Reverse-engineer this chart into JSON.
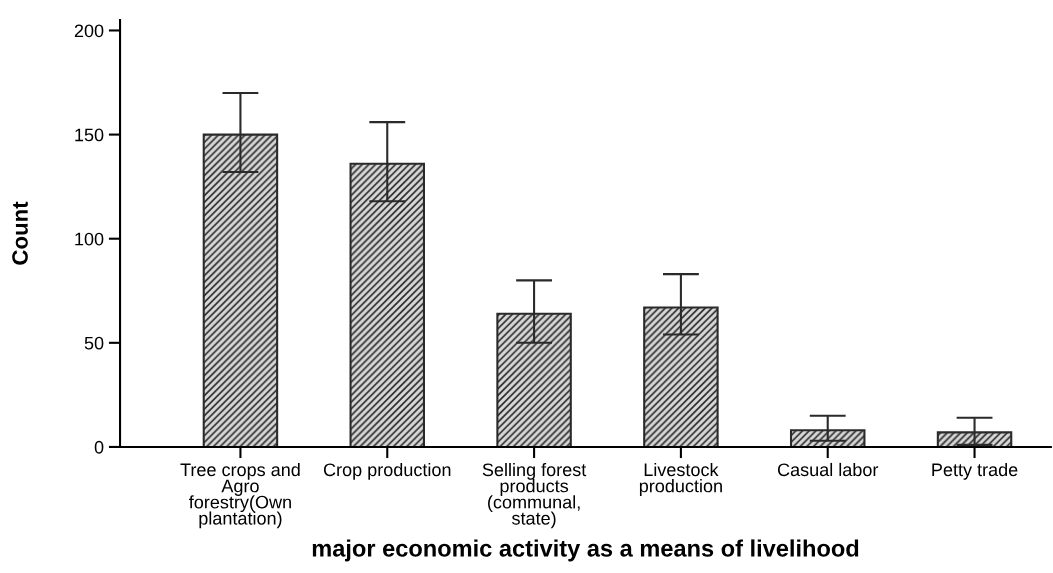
{
  "chart_data": {
    "type": "bar",
    "xlabel": "major economic activity as a means of livelihood",
    "ylabel": "Count",
    "categories": [
      "Tree crops and Agro forestry(Own plantation)",
      "Crop production",
      "Selling forest products (communal, state)",
      "Livestock production",
      "Casual labor",
      "Petty trade"
    ],
    "values": [
      150,
      136,
      64,
      67,
      8,
      7
    ],
    "errors": [
      [
        132,
        170
      ],
      [
        118,
        156
      ],
      [
        50,
        80
      ],
      [
        54,
        83
      ],
      [
        3,
        15
      ],
      [
        1,
        14
      ]
    ],
    "color": "#2a2a2a",
    "ylim": [
      0,
      205
    ],
    "yticks": [
      0,
      50,
      100,
      150,
      200
    ],
    "grid": false,
    "legend": false
  }
}
